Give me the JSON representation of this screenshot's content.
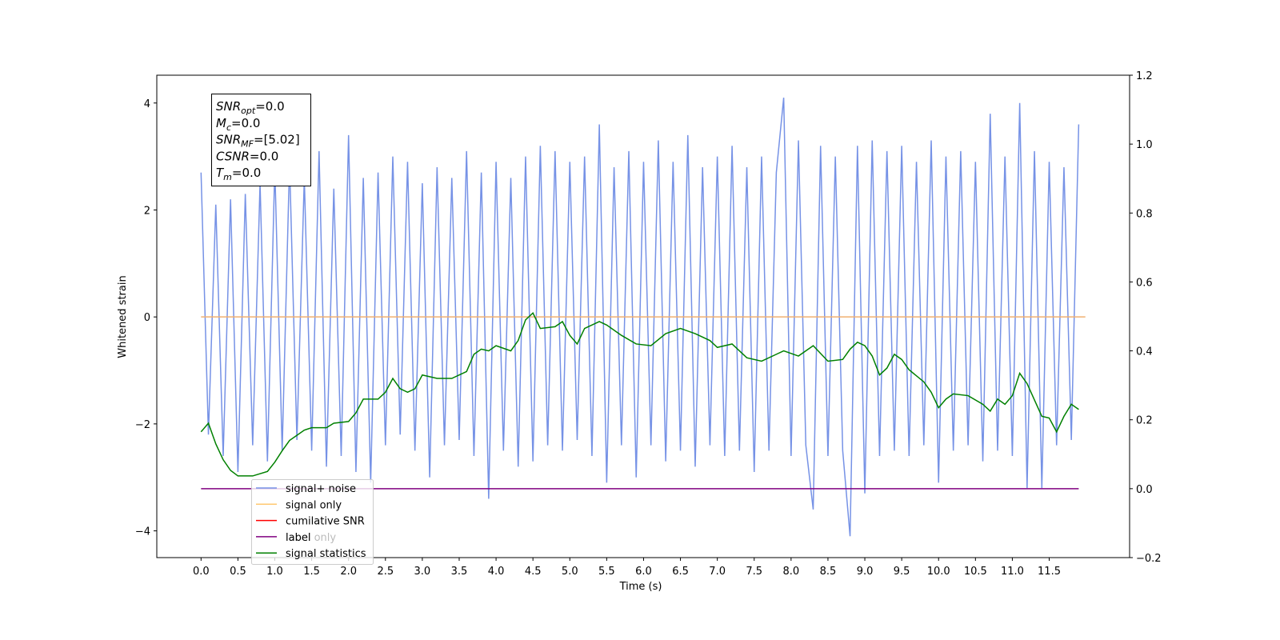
{
  "chart_data": {
    "type": "line",
    "xlabel": "Time (s)",
    "ylabel": "Whitened strain",
    "xlim": [
      -0.6,
      12.59
    ],
    "ylim": [
      -4.5,
      4.52
    ],
    "y2lim": [
      -0.2,
      1.2
    ],
    "xticks": [
      {
        "value": 0,
        "label": "0.0"
      },
      0.5,
      {
        "value": 1,
        "label": "1.0"
      },
      1.5,
      {
        "value": 2,
        "label": "2.0"
      },
      2.5,
      {
        "value": 3,
        "label": "3.0"
      },
      3.5,
      {
        "value": 4,
        "label": "4.0"
      },
      4.5,
      {
        "value": 5,
        "label": "5.0"
      },
      5.5,
      {
        "value": 6,
        "label": "6.0"
      },
      6.5,
      {
        "value": 7,
        "label": "7.0"
      },
      7.5,
      {
        "value": 8,
        "label": "8.0"
      },
      8.5,
      {
        "value": 9,
        "label": "9.0"
      },
      9.5,
      {
        "value": 10,
        "label": "10.0"
      },
      10.5,
      {
        "value": 11,
        "label": "11.0"
      },
      11.5
    ],
    "yticks": [
      {
        "value": -4,
        "label": "−4"
      },
      {
        "value": -2,
        "label": "−2"
      },
      0,
      2,
      4
    ],
    "y2ticks": [
      {
        "value": -0.2,
        "label": "−0.2"
      },
      {
        "value": 0,
        "label": "0.0"
      },
      0.2,
      0.4,
      0.6,
      0.8,
      {
        "value": 1,
        "label": "1.0"
      },
      1.2
    ],
    "series": [
      {
        "color": "#7692e6",
        "x": [
          0.0,
          0.1,
          0.2,
          0.3,
          0.4,
          0.5,
          0.6,
          0.7,
          0.8,
          0.9,
          1.0,
          1.1,
          1.2,
          1.3,
          1.4,
          1.5,
          1.6,
          1.7,
          1.8,
          1.9,
          2.0,
          2.1,
          2.2,
          2.3,
          2.4,
          2.5,
          2.6,
          2.7,
          2.8,
          2.9,
          3.0,
          3.1,
          3.2,
          3.3,
          3.4,
          3.5,
          3.6,
          3.7,
          3.8,
          3.9,
          4.0,
          4.1,
          4.2,
          4.3,
          4.4,
          4.5,
          4.6,
          4.7,
          4.8,
          4.9,
          5.0,
          5.1,
          5.2,
          5.3,
          5.4,
          5.5,
          5.6,
          5.7,
          5.8,
          5.9,
          6.0,
          6.1,
          6.2,
          6.3,
          6.4,
          6.5,
          6.6,
          6.7,
          6.8,
          6.9,
          7.0,
          7.1,
          7.2,
          7.3,
          7.4,
          7.5,
          7.6,
          7.7,
          7.8,
          7.9,
          8.0,
          8.1,
          8.2,
          8.3,
          8.4,
          8.5,
          8.6,
          8.7,
          8.8,
          8.9,
          9.0,
          9.1,
          9.2,
          9.3,
          9.4,
          9.5,
          9.6,
          9.7,
          9.8,
          9.9,
          10.0,
          10.1,
          10.2,
          10.3,
          10.4,
          10.5,
          10.6,
          10.7,
          10.8,
          10.9,
          11.0,
          11.1,
          11.2,
          11.3,
          11.4,
          11.5,
          11.6,
          11.7,
          11.8,
          11.9
        ],
        "values": [
          2.7,
          -2.2,
          2.1,
          -2.6,
          2.2,
          -2.9,
          2.3,
          -2.4,
          2.5,
          -2.7,
          2.8,
          -2.5,
          2.9,
          -2.3,
          2.6,
          -2.5,
          3.1,
          -2.8,
          2.4,
          -2.6,
          3.4,
          -2.9,
          2.6,
          -3.1,
          2.7,
          -2.4,
          3.0,
          -2.2,
          2.9,
          -2.5,
          2.5,
          -3.0,
          2.8,
          -2.4,
          2.6,
          -2.3,
          3.1,
          -2.6,
          2.7,
          -3.4,
          2.9,
          -2.5,
          2.6,
          -2.8,
          3.0,
          -2.7,
          3.2,
          -2.4,
          3.1,
          -2.5,
          2.9,
          -2.3,
          3.0,
          -2.6,
          3.6,
          -3.1,
          2.8,
          -2.4,
          3.1,
          -3.0,
          2.9,
          -2.4,
          3.3,
          -2.7,
          2.9,
          -2.5,
          3.4,
          -2.8,
          2.8,
          -2.4,
          3.0,
          -2.6,
          3.2,
          -2.5,
          2.8,
          -2.9,
          3.0,
          -2.5,
          2.7,
          4.1,
          -2.6,
          3.3,
          -2.4,
          -3.6,
          3.2,
          -2.6,
          3.0,
          -2.5,
          -4.1,
          3.2,
          -3.3,
          3.3,
          -2.6,
          3.1,
          -2.5,
          3.2,
          -2.6,
          2.9,
          -2.4,
          3.3,
          -3.1,
          3.0,
          -2.5,
          3.1,
          -2.4,
          2.9,
          -2.7,
          3.8,
          -2.5,
          3.0,
          -2.6,
          4.0,
          -3.2,
          3.1,
          -3.2,
          2.9,
          -2.4,
          2.8,
          -2.3,
          3.6
        ]
      },
      {
        "color": "#f0b070",
        "x": [
          0.0,
          11.99
        ],
        "values": [
          0,
          0
        ]
      },
      {
        "color": "#800080",
        "axis": "y2",
        "x": [
          0.0,
          11.9
        ],
        "values": [
          0,
          0
        ]
      },
      {
        "color": "#008000",
        "axis": "y2",
        "x": [
          0.0,
          0.1,
          0.2,
          0.3,
          0.4,
          0.5,
          0.7,
          0.9,
          1.0,
          1.1,
          1.2,
          1.3,
          1.4,
          1.5,
          1.7,
          1.8,
          2.0,
          2.1,
          2.2,
          2.4,
          2.5,
          2.6,
          2.7,
          2.8,
          2.9,
          3.0,
          3.2,
          3.4,
          3.6,
          3.7,
          3.8,
          3.9,
          4.0,
          4.2,
          4.3,
          4.4,
          4.5,
          4.6,
          4.8,
          4.9,
          5.0,
          5.1,
          5.2,
          5.4,
          5.5,
          5.7,
          5.9,
          6.1,
          6.3,
          6.5,
          6.7,
          6.9,
          7.0,
          7.2,
          7.4,
          7.6,
          7.8,
          7.9,
          8.1,
          8.3,
          8.5,
          8.7,
          8.8,
          8.9,
          9.0,
          9.1,
          9.2,
          9.3,
          9.4,
          9.5,
          9.6,
          9.8,
          9.9,
          10.0,
          10.1,
          10.2,
          10.4,
          10.6,
          10.7,
          10.8,
          10.9,
          11.0,
          11.1,
          11.2,
          11.4,
          11.5,
          11.6,
          11.7,
          11.8,
          11.9
        ],
        "values": [
          0.165,
          0.19,
          0.13,
          0.084,
          0.053,
          0.037,
          0.037,
          0.05,
          0.077,
          0.11,
          0.14,
          0.155,
          0.17,
          0.177,
          0.177,
          0.19,
          0.195,
          0.22,
          0.26,
          0.26,
          0.28,
          0.32,
          0.29,
          0.28,
          0.29,
          0.33,
          0.32,
          0.32,
          0.34,
          0.39,
          0.405,
          0.4,
          0.415,
          0.4,
          0.43,
          0.49,
          0.51,
          0.465,
          0.47,
          0.485,
          0.445,
          0.42,
          0.465,
          0.485,
          0.475,
          0.445,
          0.42,
          0.415,
          0.45,
          0.465,
          0.45,
          0.43,
          0.41,
          0.42,
          0.38,
          0.37,
          0.39,
          0.4,
          0.385,
          0.415,
          0.37,
          0.375,
          0.405,
          0.425,
          0.415,
          0.385,
          0.33,
          0.35,
          0.39,
          0.375,
          0.345,
          0.31,
          0.28,
          0.235,
          0.26,
          0.275,
          0.27,
          0.245,
          0.225,
          0.26,
          0.245,
          0.27,
          0.335,
          0.305,
          0.21,
          0.205,
          0.165,
          0.21,
          0.245,
          0.23
        ]
      }
    ],
    "legend": {
      "entries": [
        {
          "name": "signal+ noise",
          "color": "#7692e6"
        },
        {
          "name": "signal only",
          "color": "#ffc870"
        },
        {
          "name": "cumilative SNR",
          "color": "#ff0000"
        },
        {
          "name": "label",
          "color": "#800080"
        },
        {
          "name": "signal statistics",
          "color": "#008000"
        }
      ],
      "hidden_entry": "label only"
    },
    "annotation": [
      {
        "symbol": "SNR",
        "sub": "opt",
        "text": "=0.0"
      },
      {
        "symbol": "M",
        "sub": "c",
        "text": "=0.0"
      },
      {
        "symbol": "SNR",
        "sub": "MF",
        "text": "=[5.02]"
      },
      {
        "symbol": "CSNR",
        "text": "=0.0"
      },
      {
        "symbol": "T",
        "sub": "m",
        "text": "=0.0"
      }
    ]
  }
}
